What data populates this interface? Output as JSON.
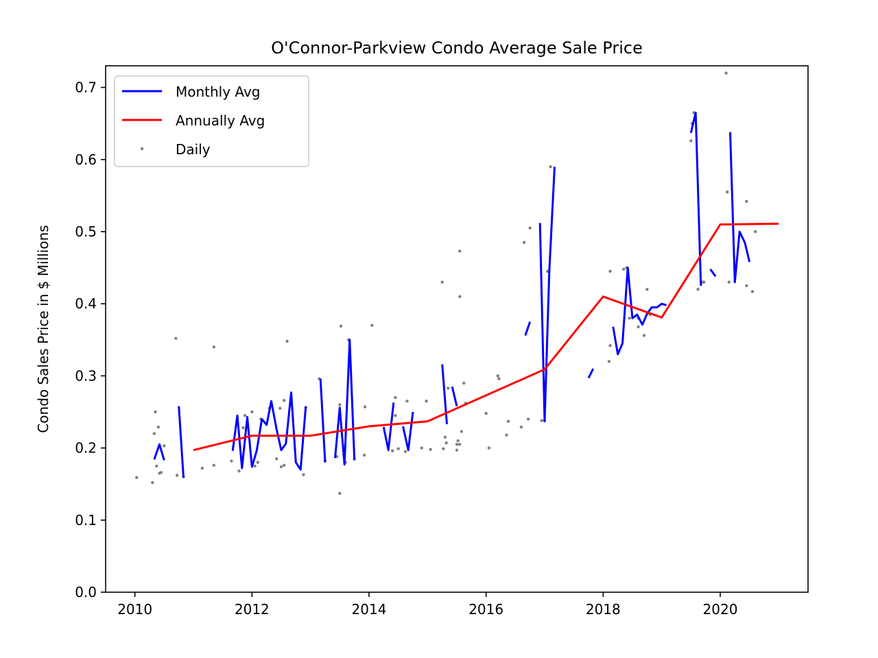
{
  "chart_data": {
    "type": "line",
    "title": "O'Connor-Parkview Condo Average Sale Price",
    "xlabel": "",
    "ylabel": "Condo Sales Price in $ Millions",
    "xlim": [
      2009.5,
      2021.5
    ],
    "ylim": [
      0.0,
      0.73
    ],
    "xticks": [
      2010,
      2012,
      2014,
      2016,
      2018,
      2020
    ],
    "xtick_labels": [
      "2010",
      "2012",
      "2014",
      "2016",
      "2018",
      "2020"
    ],
    "yticks": [
      0.0,
      0.1,
      0.2,
      0.3,
      0.4,
      0.5,
      0.6,
      0.7
    ],
    "ytick_labels": [
      "0.0",
      "0.1",
      "0.2",
      "0.3",
      "0.4",
      "0.5",
      "0.6",
      "0.7"
    ],
    "grid": false,
    "legend_position": "top-left",
    "colors": {
      "monthly": "#0000ff",
      "annual": "#ff0000",
      "daily": "#808080"
    },
    "series": [
      {
        "name": "Monthly Avg",
        "kind": "line",
        "segments": [
          [
            [
              2010.33,
              0.184
            ],
            [
              2010.42,
              0.205
            ],
            [
              2010.5,
              0.183
            ]
          ],
          [
            [
              2010.75,
              0.258
            ],
            [
              2010.83,
              0.159
            ]
          ],
          [
            [
              2011.67,
              0.196
            ],
            [
              2011.75,
              0.245
            ],
            [
              2011.83,
              0.172
            ],
            [
              2011.92,
              0.243
            ],
            [
              2012.0,
              0.174
            ],
            [
              2012.08,
              0.196
            ],
            [
              2012.17,
              0.24
            ],
            [
              2012.25,
              0.232
            ],
            [
              2012.33,
              0.265
            ],
            [
              2012.42,
              0.226
            ],
            [
              2012.5,
              0.197
            ],
            [
              2012.58,
              0.206
            ],
            [
              2012.67,
              0.277
            ],
            [
              2012.75,
              0.18
            ],
            [
              2012.83,
              0.17
            ],
            [
              2012.92,
              0.258
            ]
          ],
          [
            [
              2013.17,
              0.296
            ],
            [
              2013.25,
              0.18
            ]
          ],
          [
            [
              2013.42,
              0.186
            ],
            [
              2013.5,
              0.256
            ],
            [
              2013.58,
              0.177
            ],
            [
              2013.67,
              0.35
            ],
            [
              2013.75,
              0.183
            ]
          ],
          [
            [
              2014.25,
              0.229
            ],
            [
              2014.33,
              0.197
            ],
            [
              2014.42,
              0.263
            ]
          ],
          [
            [
              2014.58,
              0.23
            ],
            [
              2014.67,
              0.197
            ],
            [
              2014.75,
              0.25
            ]
          ],
          [
            [
              2015.25,
              0.316
            ],
            [
              2015.33,
              0.233
            ]
          ],
          [
            [
              2015.42,
              0.285
            ],
            [
              2015.5,
              0.258
            ]
          ],
          [
            [
              2016.67,
              0.356
            ],
            [
              2016.75,
              0.375
            ]
          ],
          [
            [
              2016.92,
              0.512
            ],
            [
              2017.0,
              0.237
            ],
            [
              2017.08,
              0.445
            ],
            [
              2017.17,
              0.59
            ]
          ],
          [
            [
              2017.75,
              0.297
            ],
            [
              2017.83,
              0.31
            ]
          ],
          [
            [
              2018.17,
              0.368
            ],
            [
              2018.25,
              0.33
            ],
            [
              2018.33,
              0.345
            ],
            [
              2018.42,
              0.45
            ],
            [
              2018.5,
              0.38
            ],
            [
              2018.58,
              0.385
            ],
            [
              2018.67,
              0.371
            ],
            [
              2018.75,
              0.386
            ],
            [
              2018.83,
              0.395
            ],
            [
              2018.92,
              0.395
            ],
            [
              2019.0,
              0.4
            ],
            [
              2019.08,
              0.398
            ]
          ],
          [
            [
              2019.5,
              0.637
            ],
            [
              2019.58,
              0.665
            ],
            [
              2019.67,
              0.425
            ]
          ],
          [
            [
              2019.83,
              0.448
            ],
            [
              2019.92,
              0.438
            ]
          ],
          [
            [
              2020.17,
              0.638
            ],
            [
              2020.25,
              0.43
            ],
            [
              2020.33,
              0.5
            ],
            [
              2020.42,
              0.485
            ],
            [
              2020.5,
              0.458
            ]
          ]
        ]
      },
      {
        "name": "Annually Avg",
        "kind": "line",
        "points": [
          [
            2011.0,
            0.197
          ],
          [
            2012.0,
            0.217
          ],
          [
            2013.0,
            0.217
          ],
          [
            2014.0,
            0.23
          ],
          [
            2015.0,
            0.237
          ],
          [
            2017.0,
            0.309
          ],
          [
            2018.0,
            0.41
          ],
          [
            2019.0,
            0.381
          ],
          [
            2020.0,
            0.51
          ],
          [
            2021.0,
            0.511
          ]
        ]
      },
      {
        "name": "Daily",
        "kind": "scatter",
        "points": [
          [
            2010.03,
            0.159
          ],
          [
            2010.3,
            0.152
          ],
          [
            2010.33,
            0.22
          ],
          [
            2010.35,
            0.25
          ],
          [
            2010.37,
            0.175
          ],
          [
            2010.4,
            0.229
          ],
          [
            2010.42,
            0.165
          ],
          [
            2010.45,
            0.166
          ],
          [
            2010.5,
            0.203
          ],
          [
            2010.7,
            0.352
          ],
          [
            2010.72,
            0.162
          ],
          [
            2010.83,
            0.16
          ],
          [
            2011.15,
            0.172
          ],
          [
            2011.35,
            0.176
          ],
          [
            2011.35,
            0.34
          ],
          [
            2011.65,
            0.182
          ],
          [
            2011.78,
            0.168
          ],
          [
            2011.85,
            0.228
          ],
          [
            2011.88,
            0.245
          ],
          [
            2012.0,
            0.25
          ],
          [
            2012.05,
            0.175
          ],
          [
            2012.1,
            0.18
          ],
          [
            2012.15,
            0.24
          ],
          [
            2012.3,
            0.255
          ],
          [
            2012.42,
            0.185
          ],
          [
            2012.48,
            0.255
          ],
          [
            2012.5,
            0.174
          ],
          [
            2012.55,
            0.176
          ],
          [
            2012.55,
            0.266
          ],
          [
            2012.6,
            0.348
          ],
          [
            2012.88,
            0.163
          ],
          [
            2012.92,
            0.256
          ],
          [
            2013.15,
            0.296
          ],
          [
            2013.25,
            0.182
          ],
          [
            2013.45,
            0.188
          ],
          [
            2013.5,
            0.137
          ],
          [
            2013.5,
            0.26
          ],
          [
            2013.52,
            0.369
          ],
          [
            2013.6,
            0.18
          ],
          [
            2013.65,
            0.35
          ],
          [
            2013.75,
            0.185
          ],
          [
            2013.92,
            0.19
          ],
          [
            2013.93,
            0.257
          ],
          [
            2014.05,
            0.37
          ],
          [
            2014.4,
            0.196
          ],
          [
            2014.45,
            0.245
          ],
          [
            2014.45,
            0.27
          ],
          [
            2014.5,
            0.199
          ],
          [
            2014.62,
            0.195
          ],
          [
            2014.65,
            0.265
          ],
          [
            2014.9,
            0.2
          ],
          [
            2014.98,
            0.265
          ],
          [
            2015.05,
            0.198
          ],
          [
            2015.25,
            0.43
          ],
          [
            2015.27,
            0.199
          ],
          [
            2015.3,
            0.215
          ],
          [
            2015.32,
            0.207
          ],
          [
            2015.35,
            0.283
          ],
          [
            2015.5,
            0.197
          ],
          [
            2015.5,
            0.205
          ],
          [
            2015.52,
            0.21
          ],
          [
            2015.55,
            0.205
          ],
          [
            2015.55,
            0.41
          ],
          [
            2015.55,
            0.473
          ],
          [
            2015.58,
            0.223
          ],
          [
            2015.62,
            0.29
          ],
          [
            2015.65,
            0.262
          ],
          [
            2016.0,
            0.248
          ],
          [
            2016.05,
            0.2
          ],
          [
            2016.2,
            0.3
          ],
          [
            2016.22,
            0.296
          ],
          [
            2016.35,
            0.218
          ],
          [
            2016.38,
            0.237
          ],
          [
            2016.6,
            0.229
          ],
          [
            2016.65,
            0.485
          ],
          [
            2016.72,
            0.24
          ],
          [
            2016.75,
            0.505
          ],
          [
            2016.95,
            0.238
          ],
          [
            2017.0,
            0.238
          ],
          [
            2017.05,
            0.445
          ],
          [
            2017.1,
            0.59
          ],
          [
            2018.1,
            0.32
          ],
          [
            2018.12,
            0.342
          ],
          [
            2018.12,
            0.445
          ],
          [
            2018.35,
            0.448
          ],
          [
            2018.4,
            0.45
          ],
          [
            2018.45,
            0.38
          ],
          [
            2018.6,
            0.38
          ],
          [
            2018.6,
            0.368
          ],
          [
            2018.7,
            0.356
          ],
          [
            2018.75,
            0.42
          ],
          [
            2018.8,
            0.385
          ],
          [
            2019.5,
            0.626
          ],
          [
            2019.52,
            0.65
          ],
          [
            2019.55,
            0.665
          ],
          [
            2019.62,
            0.42
          ],
          [
            2019.7,
            0.43
          ],
          [
            2019.72,
            0.43
          ],
          [
            2020.1,
            0.72
          ],
          [
            2020.12,
            0.555
          ],
          [
            2020.15,
            0.43
          ],
          [
            2020.45,
            0.542
          ],
          [
            2020.45,
            0.425
          ],
          [
            2020.55,
            0.417
          ],
          [
            2020.6,
            0.5
          ]
        ]
      }
    ]
  }
}
